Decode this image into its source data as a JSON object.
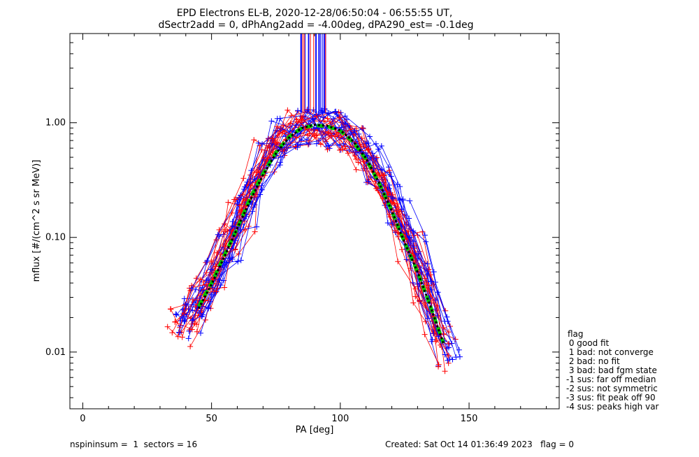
{
  "chart_data": {
    "type": "line",
    "title_line1": "EPD Electrons EL-B, 2020-12-28/06:50:04 - 06:55:55 UT,",
    "title_line2": "dSectr2add = 0, dPhAng2add = -4.00deg, dPA290_est=  -0.1deg",
    "xlabel": "PA [deg]",
    "ylabel": "mflux [#/(cm^2 s sr MeV)]",
    "xlim": [
      -5,
      185
    ],
    "ylim": [
      0.0032,
      6.0
    ],
    "yscale": "log",
    "x_ticks": [
      0,
      50,
      100,
      150
    ],
    "x_tick_labels": [
      "0",
      "50",
      "100",
      "150"
    ],
    "y_ticks": [
      0.01,
      0.1,
      1.0
    ],
    "y_tick_labels": [
      "0.01",
      "0.10",
      "1.00"
    ],
    "fit_curves": [
      {
        "color": "#00cc00",
        "style": "dashed",
        "x": [
          45,
          50,
          55,
          60,
          65,
          70,
          75,
          80,
          85,
          90,
          95,
          100,
          105,
          110,
          115,
          120,
          125,
          130,
          135,
          140
        ],
        "y": [
          0.025,
          0.04,
          0.07,
          0.12,
          0.22,
          0.36,
          0.55,
          0.75,
          0.9,
          0.95,
          0.93,
          0.85,
          0.68,
          0.48,
          0.3,
          0.17,
          0.09,
          0.05,
          0.025,
          0.012
        ]
      },
      {
        "color": "#000000",
        "style": "dotted",
        "x": [
          45,
          50,
          55,
          60,
          65,
          70,
          75,
          80,
          85,
          90,
          95,
          100,
          105,
          110,
          115,
          120,
          125,
          130,
          135,
          140
        ],
        "y": [
          0.024,
          0.039,
          0.068,
          0.12,
          0.21,
          0.35,
          0.54,
          0.74,
          0.9,
          0.96,
          0.94,
          0.86,
          0.69,
          0.49,
          0.3,
          0.17,
          0.09,
          0.05,
          0.025,
          0.012
        ]
      }
    ],
    "sweep_colors": [
      "#ff0000",
      "#0000ff"
    ],
    "annotations": {
      "footer_left": "nspininsum =  1  sectors = 16",
      "footer_right": "Created: Sat Oct 14 01:36:49 2023   flag = 0"
    },
    "legend": {
      "title": "flag",
      "entries": [
        " 0 good fit",
        " 1 bad: not converge",
        " 2 bad: no fit",
        " 3 bad: bad fgm state",
        "-1 sus: far off median",
        "-2 sus: not symmetric",
        "-3 sus: fit peak off 90",
        "-4 sus: peaks high var"
      ]
    }
  }
}
